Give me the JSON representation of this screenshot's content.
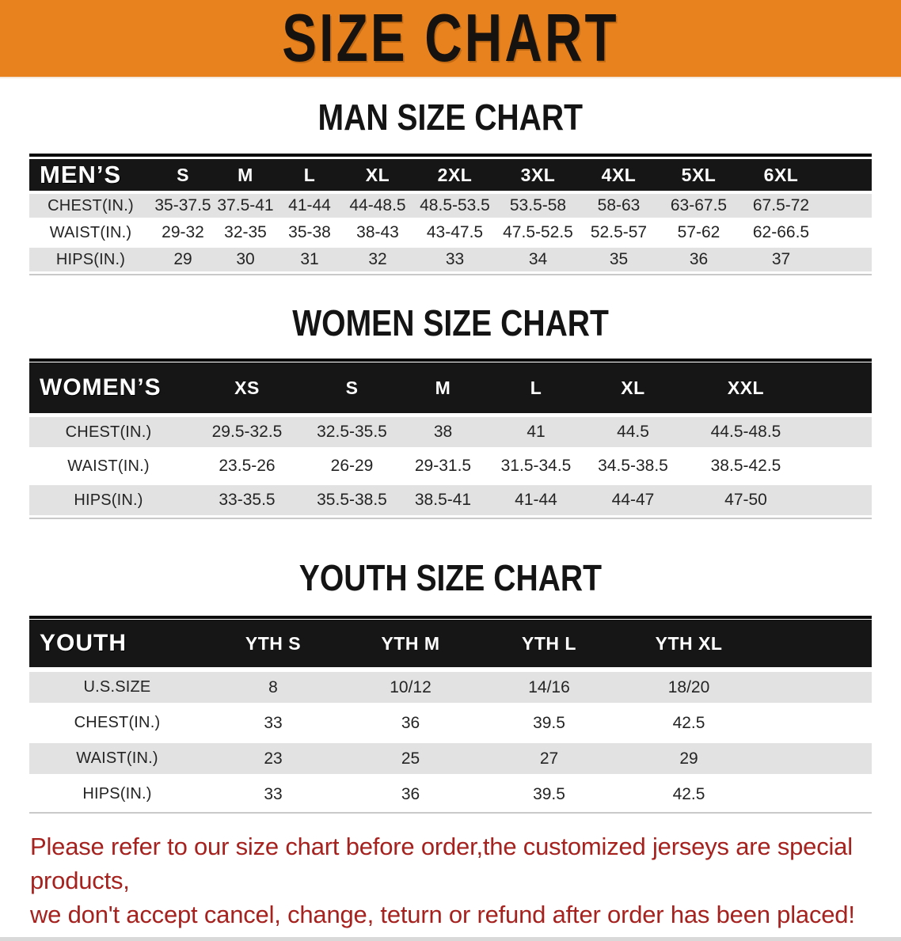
{
  "banner": {
    "title": "SIZE CHART",
    "background_color": "#e8821e"
  },
  "tables": [
    {
      "id": "mens",
      "heading": "MAN SIZE CHART",
      "corner_label": "MEN’S",
      "columns": [
        "S",
        "M",
        "L",
        "XL",
        "2XL",
        "3XL",
        "4XL",
        "5XL",
        "6XL"
      ],
      "rows": [
        {
          "label": "CHEST(IN.)",
          "values": [
            "35-37.5",
            "37.5-41",
            "41-44",
            "44-48.5",
            "48.5-53.5",
            "53.5-58",
            "58-63",
            "63-67.5",
            "67.5-72"
          ]
        },
        {
          "label": "WAIST(IN.)",
          "values": [
            "29-32",
            "32-35",
            "35-38",
            "38-43",
            "43-47.5",
            "47.5-52.5",
            "52.5-57",
            "57-62",
            "62-66.5"
          ]
        },
        {
          "label": "HIPS(IN.)",
          "values": [
            "29",
            "30",
            "31",
            "32",
            "33",
            "34",
            "35",
            "36",
            "37"
          ]
        }
      ]
    },
    {
      "id": "womens",
      "heading": "WOMEN SIZE CHART",
      "corner_label": "WOMEN’S",
      "columns": [
        "XS",
        "S",
        "M",
        "L",
        "XL",
        "XXL"
      ],
      "rows": [
        {
          "label": "CHEST(IN.)",
          "values": [
            "29.5-32.5",
            "32.5-35.5",
            "38",
            "41",
            "44.5",
            "44.5-48.5"
          ]
        },
        {
          "label": "WAIST(IN.)",
          "values": [
            "23.5-26",
            "26-29",
            "29-31.5",
            "31.5-34.5",
            "34.5-38.5",
            "38.5-42.5"
          ]
        },
        {
          "label": "HIPS(IN.)",
          "values": [
            "33-35.5",
            "35.5-38.5",
            "38.5-41",
            "41-44",
            "44-47",
            "47-50"
          ]
        }
      ]
    },
    {
      "id": "youth",
      "heading": "YOUTH SIZE CHART",
      "corner_label": "YOUTH",
      "columns": [
        "YTH S",
        "YTH M",
        "YTH L",
        "YTH XL"
      ],
      "rows": [
        {
          "label": "U.S.SIZE",
          "values": [
            "8",
            "10/12",
            "14/16",
            "18/20"
          ]
        },
        {
          "label": "CHEST(IN.)",
          "values": [
            "33",
            "36",
            "39.5",
            "42.5"
          ]
        },
        {
          "label": "WAIST(IN.)",
          "values": [
            "23",
            "25",
            "27",
            "29"
          ]
        },
        {
          "label": "HIPS(IN.)",
          "values": [
            "33",
            "36",
            "39.5",
            "42.5"
          ]
        }
      ]
    }
  ],
  "disclaimer": {
    "color": "#a5221f",
    "lines": [
      "Please refer to our size chart before order,the customized jerseys are special products,",
      "we don't accept cancel, change, teturn or refund after order has been placed!"
    ]
  }
}
